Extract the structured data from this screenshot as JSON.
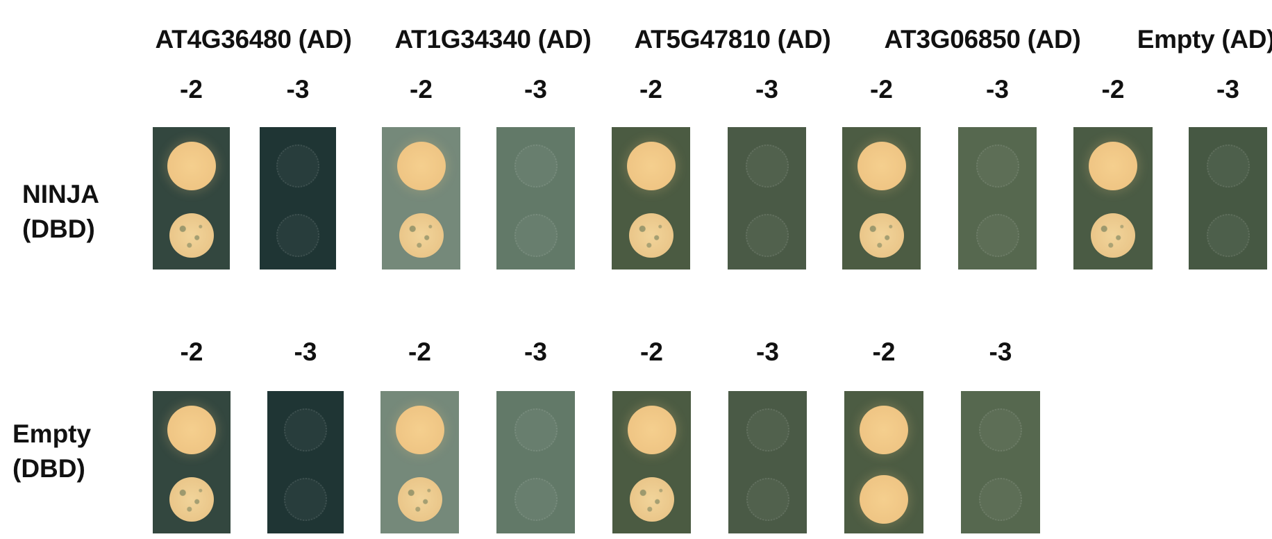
{
  "columns": [
    {
      "label": "AT4G36480 (AD)"
    },
    {
      "label": "AT1G34340 (AD)"
    },
    {
      "label": "AT5G47810 (AD)"
    },
    {
      "label": "AT3G06850 (AD)"
    },
    {
      "label": "Empty (AD)"
    }
  ],
  "dilutions": [
    "-2",
    "-3"
  ],
  "rows": [
    {
      "label_line1": "NINJA",
      "label_line2": "(DBD)",
      "plates": [
        {
          "column": 0,
          "dilution": "-2",
          "background": "#33473f",
          "spot1": "strong",
          "spot2": "rough"
        },
        {
          "column": 0,
          "dilution": "-3",
          "background": "#1f3534",
          "spot1": "faint",
          "spot2": "faint"
        },
        {
          "column": 1,
          "dilution": "-2",
          "background": "#75897a",
          "spot1": "strong",
          "spot2": "rough"
        },
        {
          "column": 1,
          "dilution": "-3",
          "background": "#627968",
          "spot1": "faint",
          "spot2": "faint"
        },
        {
          "column": 2,
          "dilution": "-2",
          "background": "#4b5b42",
          "spot1": "strong",
          "spot2": "rough"
        },
        {
          "column": 2,
          "dilution": "-3",
          "background": "#4a5a46",
          "spot1": "faint",
          "spot2": "faint"
        },
        {
          "column": 3,
          "dilution": "-2",
          "background": "#4c5c43",
          "spot1": "strong",
          "spot2": "rough"
        },
        {
          "column": 3,
          "dilution": "-3",
          "background": "#56684f",
          "spot1": "faint",
          "spot2": "faint"
        },
        {
          "column": 4,
          "dilution": "-2",
          "background": "#4a5b44",
          "spot1": "strong",
          "spot2": "rough"
        },
        {
          "column": 4,
          "dilution": "-3",
          "background": "#465843",
          "spot1": "faint",
          "spot2": "faint"
        }
      ]
    },
    {
      "label_line1": "Empty",
      "label_line2": "(DBD)",
      "plates": [
        {
          "column": 0,
          "dilution": "-2",
          "background": "#33473f",
          "spot1": "strong",
          "spot2": "rough"
        },
        {
          "column": 0,
          "dilution": "-3",
          "background": "#1f3534",
          "spot1": "faint",
          "spot2": "faint"
        },
        {
          "column": 1,
          "dilution": "-2",
          "background": "#75897a",
          "spot1": "strong",
          "spot2": "rough"
        },
        {
          "column": 1,
          "dilution": "-3",
          "background": "#627968",
          "spot1": "faint",
          "spot2": "faint"
        },
        {
          "column": 2,
          "dilution": "-2",
          "background": "#4b5b42",
          "spot1": "strong",
          "spot2": "rough"
        },
        {
          "column": 2,
          "dilution": "-3",
          "background": "#4a5a46",
          "spot1": "faint",
          "spot2": "faint"
        },
        {
          "column": 3,
          "dilution": "-2",
          "background": "#4c5c43",
          "spot1": "strong",
          "spot2": "strong"
        },
        {
          "column": 3,
          "dilution": "-3",
          "background": "#56684f",
          "spot1": "faint",
          "spot2": "faint"
        }
      ]
    }
  ],
  "colors": {
    "colony": "#f0c987",
    "colony_edge": "#e3b878"
  }
}
